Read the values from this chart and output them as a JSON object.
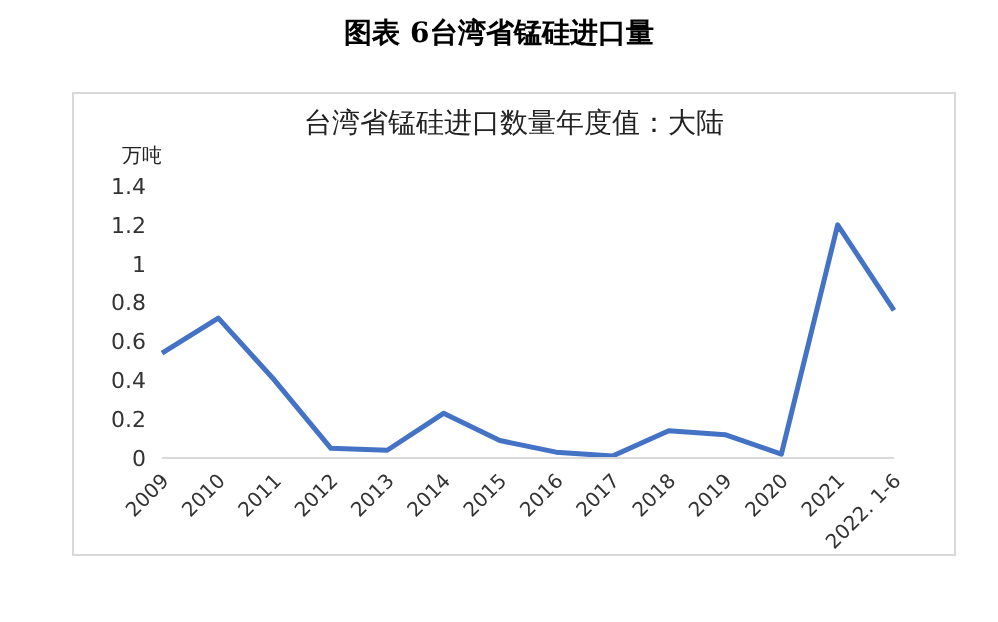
{
  "chart_data": {
    "type": "line",
    "title": "图表 6台湾省锰硅进口量",
    "subtitle": "台湾省锰硅进口数量年度值：大陆",
    "ylabel": "万吨",
    "categories": [
      "2009",
      "2010",
      "2011",
      "2012",
      "2013",
      "2014",
      "2015",
      "2016",
      "2017",
      "2018",
      "2019",
      "2020",
      "2021",
      "2022. 1-6"
    ],
    "series": [
      {
        "color": "#4472c4",
        "values": [
          0.54,
          0.72,
          0.4,
          0.05,
          0.04,
          0.23,
          0.09,
          0.03,
          0.01,
          0.14,
          0.12,
          0.02,
          1.2,
          0.76
        ]
      }
    ],
    "ylim": [
      0,
      1.4
    ],
    "yticks": [
      0,
      0.2,
      0.4,
      0.6,
      0.8,
      1,
      1.2,
      1.4
    ],
    "grid": false,
    "marker": "none",
    "line_style": "solid"
  }
}
